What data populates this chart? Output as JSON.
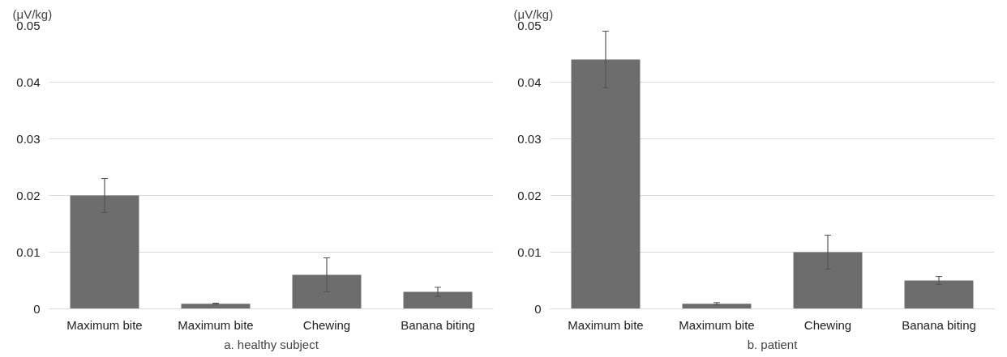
{
  "chart_data": [
    {
      "type": "bar",
      "ylabel": "(μV/kg)",
      "xlabel": "a. healthy subject",
      "categories": [
        "Maximum bite",
        "Maximum bite",
        "Chewing",
        "Banana biting"
      ],
      "values": [
        0.02,
        0.0009,
        0.006,
        0.003
      ],
      "errors": [
        0.003,
        0.0001,
        0.003,
        0.0008
      ],
      "color": "#6d6d6d",
      "ylim": [
        0,
        0.05
      ],
      "yticks": [
        0,
        0.01,
        0.02,
        0.03,
        0.04,
        0.05
      ],
      "grid": "y"
    },
    {
      "type": "bar",
      "ylabel": "(μV/kg)",
      "xlabel": "b. patient",
      "categories": [
        "Maximum bite",
        "Maximum bite",
        "Chewing",
        "Banana biting"
      ],
      "values": [
        0.044,
        0.0009,
        0.01,
        0.005
      ],
      "errors": [
        0.005,
        0.0002,
        0.003,
        0.0007
      ],
      "color": "#6d6d6d",
      "ylim": [
        0,
        0.05
      ],
      "yticks": [
        0,
        0.01,
        0.02,
        0.03,
        0.04,
        0.05
      ],
      "grid": "y"
    }
  ]
}
